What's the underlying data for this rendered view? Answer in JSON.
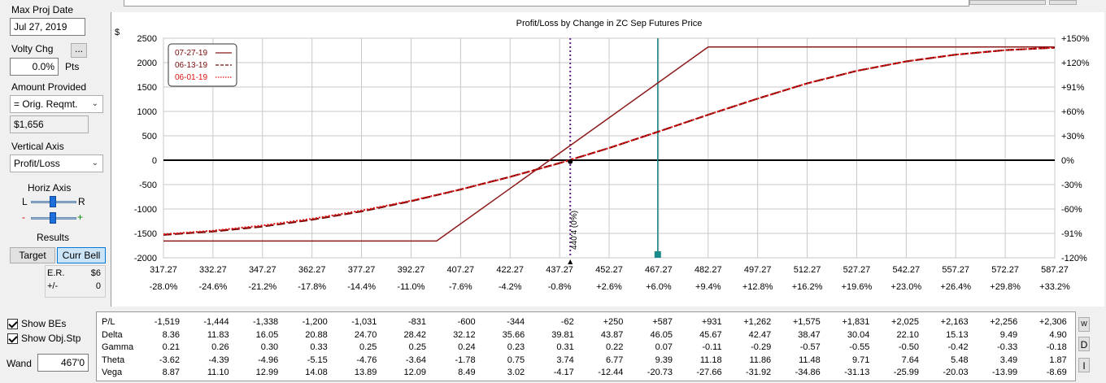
{
  "left_panel": {
    "max_proj_date_label": "Max Proj Date",
    "max_proj_date_value": "Jul 27, 2019",
    "volty_chg_label": "Volty Chg",
    "volty_chg_button": "...",
    "volty_chg_value": "0.0%",
    "volty_chg_unit": "Pts",
    "amount_provided_label": "Amount Provided",
    "amount_provided_select": "= Orig. Reqmt.",
    "amount_value": "$1,656",
    "vertical_axis_label": "Vertical Axis",
    "vertical_axis_select": "Profit/Loss",
    "horiz_axis_label": "Horiz Axis",
    "horiz_left": "L",
    "horiz_right": "R",
    "zoom_minus": "-",
    "zoom_plus": "+",
    "results_label": "Results",
    "target_button": "Target",
    "curr_bell_button": "Curr Bell",
    "er_label": "E.R.",
    "er_value": "$6",
    "pm_label": "+/-",
    "pm_value": "0",
    "show_bes": "Show BEs",
    "show_obj_stp": "Show Obj.Stp",
    "wand_label": "Wand",
    "wand_value": "467'0"
  },
  "right_buttons": {
    "w": "W",
    "d": "D",
    "i": "I"
  },
  "chart_data": {
    "type": "line",
    "title": "Profit/Loss by Change in ZC Sep Futures Price",
    "ylabel": "$",
    "ylim": [
      -2000,
      2500
    ],
    "yticks": [
      "2500",
      "2000",
      "1500",
      "1000",
      "500",
      "0",
      "-500",
      "-1000",
      "-1500",
      "-2000"
    ],
    "yticks_right": [
      "+150%",
      "+120%",
      "+91%",
      "+60%",
      "+30%",
      "0%",
      "-30%",
      "-60%",
      "-91%",
      "-120%"
    ],
    "xlim": [
      317.27,
      587.27
    ],
    "x": [
      317.27,
      332.27,
      347.27,
      362.27,
      377.27,
      392.27,
      407.27,
      422.27,
      437.27,
      452.27,
      467.27,
      482.27,
      497.27,
      512.27,
      527.27,
      542.27,
      557.27,
      572.27,
      587.27
    ],
    "x_pct": [
      "-28.0%",
      "-24.6%",
      "-21.2%",
      "-17.8%",
      "-14.4%",
      "-11.0%",
      "-7.6%",
      "-4.2%",
      "-0.8%",
      "+2.6%",
      "+6.0%",
      "+9.4%",
      "+12.8%",
      "+16.2%",
      "+19.6%",
      "+23.0%",
      "+26.4%",
      "+29.8%",
      "+33.2%"
    ],
    "current_price_label": "440'4 (0%)",
    "current_price_x": 440.5,
    "wand_x": 467.0,
    "series": [
      {
        "name": "07-27-19",
        "style": "solid",
        "color": "#8b1a1a",
        "points": [
          [
            317.27,
            -1656
          ],
          [
            400,
            -1656
          ],
          [
            482.27,
            2320
          ],
          [
            587.27,
            2320
          ]
        ]
      },
      {
        "name": "06-13-19",
        "style": "dashed",
        "color": "#7a0a0a",
        "points": [
          [
            317.27,
            -1530
          ],
          [
            332.27,
            -1460
          ],
          [
            347.27,
            -1360
          ],
          [
            362.27,
            -1220
          ],
          [
            377.27,
            -1050
          ],
          [
            392.27,
            -840
          ],
          [
            407.27,
            -600
          ],
          [
            422.27,
            -340
          ],
          [
            437.27,
            -60
          ],
          [
            452.27,
            250
          ],
          [
            467.27,
            587
          ],
          [
            482.27,
            931
          ],
          [
            497.27,
            1262
          ],
          [
            512.27,
            1575
          ],
          [
            527.27,
            1831
          ],
          [
            542.27,
            2025
          ],
          [
            557.27,
            2163
          ],
          [
            572.27,
            2256
          ],
          [
            587.27,
            2306
          ]
        ]
      },
      {
        "name": "06-01-19",
        "style": "dotted",
        "color": "#e01010",
        "points": [
          [
            317.27,
            -1519
          ],
          [
            332.27,
            -1444
          ],
          [
            347.27,
            -1338
          ],
          [
            362.27,
            -1200
          ],
          [
            377.27,
            -1031
          ],
          [
            392.27,
            -831
          ],
          [
            407.27,
            -600
          ],
          [
            422.27,
            -344
          ],
          [
            437.27,
            -62
          ],
          [
            452.27,
            250
          ],
          [
            467.27,
            587
          ],
          [
            482.27,
            931
          ],
          [
            497.27,
            1262
          ],
          [
            512.27,
            1575
          ],
          [
            527.27,
            1831
          ],
          [
            542.27,
            2025
          ],
          [
            557.27,
            2163
          ],
          [
            572.27,
            2256
          ],
          [
            587.27,
            2306
          ]
        ]
      }
    ],
    "legend": [
      "07-27-19",
      "06-13-19",
      "06-01-19"
    ]
  },
  "greeks_table": {
    "labels": [
      "P/L",
      "Delta",
      "Gamma",
      "Theta",
      "Vega"
    ],
    "rows": [
      [
        "-1,519",
        "-1,444",
        "-1,338",
        "-1,200",
        "-1,031",
        "-831",
        "-600",
        "-344",
        "-62",
        "+250",
        "+587",
        "+931",
        "+1,262",
        "+1,575",
        "+1,831",
        "+2,025",
        "+2,163",
        "+2,256",
        "+2,306"
      ],
      [
        "8.36",
        "11.83",
        "16.05",
        "20.88",
        "24.70",
        "28.42",
        "32.12",
        "35.66",
        "39.81",
        "43.87",
        "46.05",
        "45.67",
        "42.47",
        "38.47",
        "30.04",
        "22.10",
        "15.13",
        "9.49",
        "4.90"
      ],
      [
        "0.21",
        "0.26",
        "0.30",
        "0.33",
        "0.25",
        "0.25",
        "0.24",
        "0.23",
        "0.31",
        "0.22",
        "0.07",
        "-0.11",
        "-0.29",
        "-0.57",
        "-0.55",
        "-0.50",
        "-0.42",
        "-0.33",
        "-0.18"
      ],
      [
        "-3.62",
        "-4.39",
        "-4.96",
        "-5.15",
        "-4.76",
        "-3.64",
        "-1.78",
        "0.75",
        "3.74",
        "6.77",
        "9.39",
        "11.18",
        "11.86",
        "11.48",
        "9.71",
        "7.64",
        "5.48",
        "3.49",
        "1.87"
      ],
      [
        "8.87",
        "11.10",
        "12.99",
        "14.08",
        "13.89",
        "12.09",
        "8.49",
        "3.02",
        "-4.17",
        "-12.44",
        "-20.73",
        "-27.66",
        "-31.92",
        "-34.86",
        "-31.13",
        "-25.99",
        "-20.03",
        "-13.99",
        "-8.69"
      ]
    ]
  }
}
